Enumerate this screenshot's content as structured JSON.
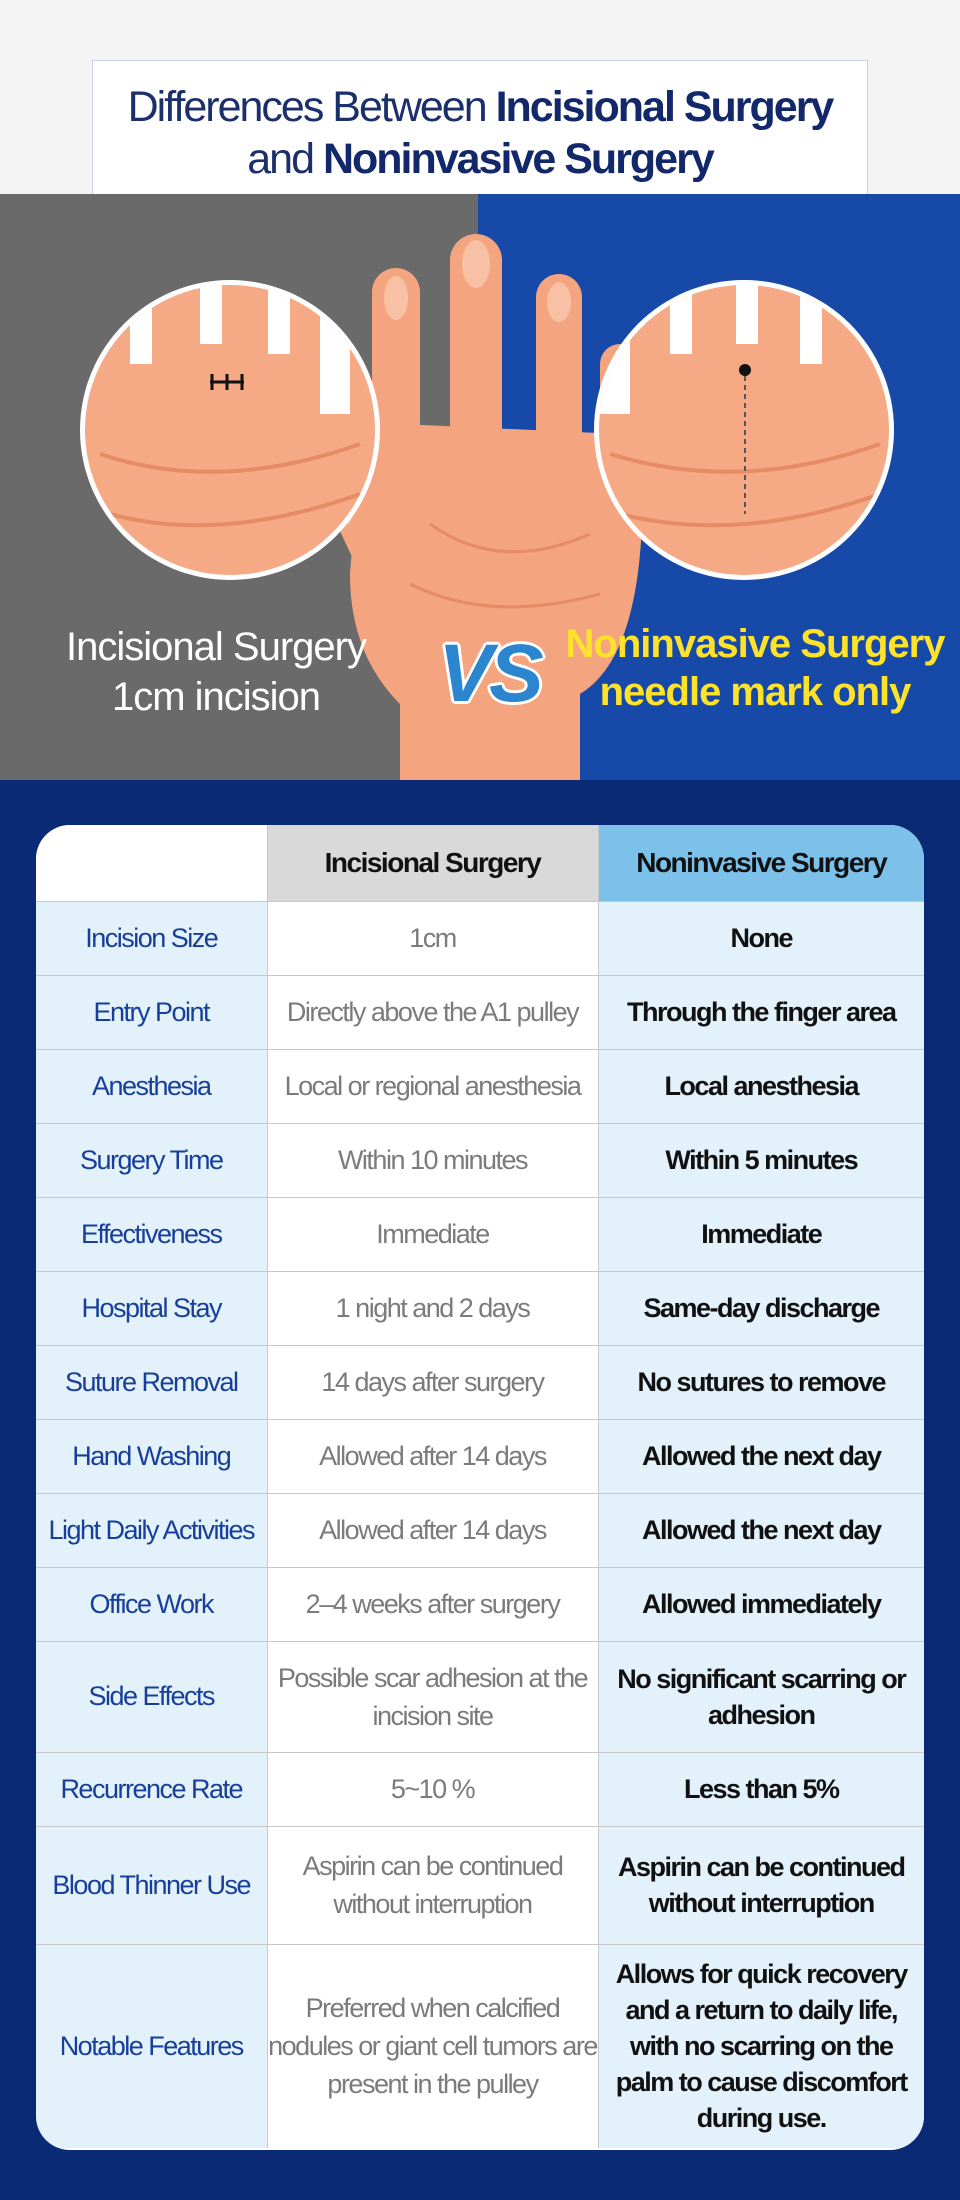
{
  "title": {
    "line1_pre": "Differences Between ",
    "line1_bold": "Incisional Surgery",
    "line2_pre": "and ",
    "line2_bold": "Noninvasive Surgery"
  },
  "hero": {
    "left_caption_1": "Incisional Surgery",
    "left_caption_2": "1cm incision",
    "vs_label": "VS",
    "right_caption_1": "Noninvasive Surgery",
    "right_caption_2": "needle mark only",
    "colors": {
      "left_bg": "#6a6a6a",
      "right_bg": "#174aa8",
      "highlight": "#ffe22a",
      "vs": "#2b86cf"
    }
  },
  "table": {
    "headers": {
      "blank": "",
      "incisional": "Incisional Surgery",
      "noninvasive": "Noninvasive Surgery"
    },
    "rows": [
      {
        "label": "Incision Size",
        "incisional": "1cm",
        "noninvasive": "None"
      },
      {
        "label": "Entry Point",
        "incisional": "Directly above the A1 pulley",
        "noninvasive": "Through the finger area"
      },
      {
        "label": "Anesthesia",
        "incisional": "Local or regional anesthesia",
        "noninvasive": "Local anesthesia"
      },
      {
        "label": "Surgery Time",
        "incisional": "Within 10 minutes",
        "noninvasive": "Within 5 minutes"
      },
      {
        "label": "Effectiveness",
        "incisional": "Immediate",
        "noninvasive": "Immediate"
      },
      {
        "label": "Hospital Stay",
        "incisional": "1 night and 2 days",
        "noninvasive": "Same-day discharge"
      },
      {
        "label": "Suture Removal",
        "incisional": "14 days after surgery",
        "noninvasive": "No sutures to remove"
      },
      {
        "label": "Hand Washing",
        "incisional": "Allowed after 14 days",
        "noninvasive": "Allowed the next day"
      },
      {
        "label": "Light Daily Activities",
        "incisional": "Allowed after 14 days",
        "noninvasive": "Allowed the next day"
      },
      {
        "label": "Office Work",
        "incisional": "2–4 weeks after surgery",
        "noninvasive": "Allowed immediately"
      },
      {
        "label": "Side Effects",
        "incisional": "Possible scar adhesion at the incision site",
        "noninvasive": "No significant scarring or adhesion"
      },
      {
        "label": "Recurrence Rate",
        "incisional": "5~10 %",
        "noninvasive": "Less than 5%"
      },
      {
        "label": "Blood Thinner Use",
        "incisional": "Aspirin can be continued without interruption",
        "noninvasive": "Aspirin can be continued without interruption"
      },
      {
        "label": "Notable Features",
        "incisional": "Preferred when calcified nodules or giant cell tumors are present in the pulley",
        "noninvasive": "Allows for quick recovery and a return to daily life, with no scarring on the palm to cause discomfort during use."
      }
    ]
  }
}
